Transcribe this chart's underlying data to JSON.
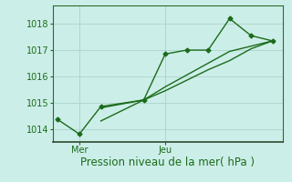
{
  "title": "",
  "xlabel": "Pression niveau de la mer( hPa )",
  "ylabel": "",
  "bg_color": "#cceee8",
  "grid_color": "#b0d8d0",
  "line_color": "#1a6b1a",
  "ylim": [
    1013.5,
    1018.7
  ],
  "yticks": [
    1014,
    1015,
    1016,
    1017,
    1018
  ],
  "xtick_labels": [
    "Mer",
    "Jeu"
  ],
  "xtick_positions": [
    2,
    10
  ],
  "vline_positions": [
    2,
    10
  ],
  "line1_x": [
    0,
    2,
    4,
    8,
    10,
    12,
    14,
    16,
    18,
    20
  ],
  "line1_y": [
    1014.35,
    1013.8,
    1014.85,
    1015.1,
    1016.85,
    1017.0,
    1017.0,
    1018.2,
    1017.55,
    1017.35
  ],
  "line2_x": [
    4,
    8,
    10,
    12,
    14,
    16,
    18,
    20
  ],
  "line2_y": [
    1014.3,
    1015.1,
    1015.45,
    1015.85,
    1016.25,
    1016.6,
    1017.05,
    1017.35
  ],
  "line3_x": [
    4,
    8,
    10,
    12,
    14,
    16,
    18,
    20
  ],
  "line3_y": [
    1014.8,
    1015.1,
    1015.6,
    1016.05,
    1016.5,
    1016.95,
    1017.15,
    1017.35
  ],
  "xlim": [
    -0.5,
    21
  ],
  "marker": "D",
  "markersize": 2.5,
  "linewidth": 1.0,
  "xlabel_fontsize": 8.5,
  "tick_fontsize": 7,
  "spine_color": "#2d6b2d",
  "axis_bottom_color": "#2d4a2d"
}
